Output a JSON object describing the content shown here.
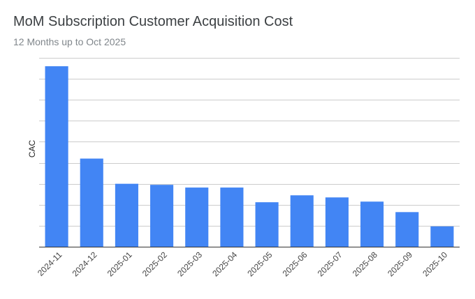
{
  "title": "MoM Subscription Customer Acquisition Cost",
  "subtitle": "12 Months up to Oct 2025",
  "colors": {
    "bar": "#4285f4",
    "grid": "#cccccc",
    "axis": "#333333"
  },
  "chart_data": {
    "type": "bar",
    "title": "MoM Subscription Customer Acquisition Cost",
    "subtitle": "12 Months up to Oct 2025",
    "xlabel": "",
    "ylabel": "CAC",
    "categories": [
      "2024-11",
      "2024-12",
      "2025-01",
      "2025-02",
      "2025-03",
      "2025-04",
      "2025-05",
      "2025-06",
      "2025-07",
      "2025-08",
      "2025-09",
      "2025-10"
    ],
    "values": [
      8.6,
      4.2,
      3.0,
      2.95,
      2.82,
      2.82,
      2.12,
      2.45,
      2.35,
      2.15,
      1.65,
      0.97
    ],
    "ylim": [
      0,
      9
    ],
    "grid_lines": 9,
    "show_y_tick_labels": false,
    "grid": true,
    "legend": "none"
  }
}
